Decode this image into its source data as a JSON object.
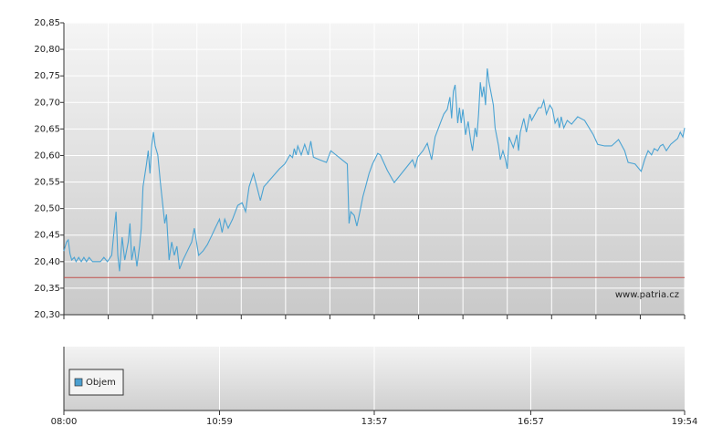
{
  "chart_data": [
    {
      "type": "line",
      "color": "#4aa3d3",
      "xlim": [
        480,
        1194
      ],
      "xticks": [
        480,
        531,
        582,
        633,
        684,
        735,
        786,
        837,
        888,
        939,
        990,
        1041,
        1092,
        1143,
        1194
      ],
      "ylim": [
        20.3,
        20.85
      ],
      "yticks": [
        {
          "value": 20.3,
          "label": "20,30"
        },
        {
          "value": 20.35,
          "label": "20,35"
        },
        {
          "value": 20.4,
          "label": "20,40"
        },
        {
          "value": 20.45,
          "label": "20,45"
        },
        {
          "value": 20.5,
          "label": "20,50"
        },
        {
          "value": 20.55,
          "label": "20,55"
        },
        {
          "value": 20.6,
          "label": "20,60"
        },
        {
          "value": 20.65,
          "label": "20,65"
        },
        {
          "value": 20.7,
          "label": "20,70"
        },
        {
          "value": 20.75,
          "label": "20,75"
        },
        {
          "value": 20.8,
          "label": "20,80"
        },
        {
          "value": 20.85,
          "label": "20,85"
        }
      ],
      "grid": true,
      "reference_line": {
        "value": 20.37,
        "color": "#c0504d"
      },
      "annotation": "www.patria.cz",
      "x": [
        480,
        483,
        485,
        487,
        489,
        492,
        494,
        497,
        500,
        503,
        506,
        509,
        513,
        516,
        522,
        526,
        530,
        535,
        538,
        540,
        542,
        544,
        547,
        550,
        554,
        556,
        558,
        561,
        564,
        567,
        569,
        571,
        575,
        577,
        579,
        581,
        583,
        585,
        588,
        591,
        596,
        598,
        601,
        604,
        607,
        610,
        613,
        617,
        622,
        627,
        630,
        635,
        640,
        645,
        650,
        654,
        659,
        662,
        665,
        669,
        674,
        680,
        685,
        689,
        693,
        698,
        702,
        706,
        710,
        728,
        734,
        740,
        743,
        745,
        747,
        749,
        753,
        757,
        761,
        764,
        767,
        774,
        782,
        787,
        806,
        808,
        810,
        814,
        817,
        821,
        824,
        827,
        831,
        835,
        841,
        844,
        852,
        860,
        881,
        884,
        887,
        893,
        898,
        903,
        907,
        913,
        917,
        921,
        924,
        926,
        928,
        930,
        933,
        935,
        937,
        939,
        942,
        945,
        948,
        950,
        953,
        955,
        957,
        959,
        961,
        963,
        965,
        967,
        969,
        971,
        974,
        976,
        980,
        982,
        985,
        988,
        990,
        992,
        997,
        1001,
        1003,
        1005,
        1009,
        1012,
        1016,
        1018,
        1022,
        1026,
        1029,
        1032,
        1035,
        1039,
        1042,
        1045,
        1048,
        1050,
        1052,
        1055,
        1059,
        1064,
        1071,
        1079,
        1089,
        1094,
        1102,
        1110,
        1118,
        1125,
        1129,
        1137,
        1144,
        1148,
        1152,
        1156,
        1159,
        1163,
        1166,
        1169,
        1173,
        1178,
        1186,
        1189,
        1192,
        1194
      ],
      "values": [
        20.42,
        20.437,
        20.441,
        20.415,
        20.403,
        20.408,
        20.4,
        20.408,
        20.4,
        20.408,
        20.4,
        20.408,
        20.4,
        20.4,
        20.4,
        20.408,
        20.4,
        20.412,
        20.463,
        20.494,
        20.412,
        20.382,
        20.446,
        20.403,
        20.437,
        20.472,
        20.403,
        20.429,
        20.391,
        20.429,
        20.463,
        20.541,
        20.584,
        20.609,
        20.566,
        20.618,
        20.644,
        20.618,
        20.601,
        20.549,
        20.472,
        20.489,
        20.403,
        20.437,
        20.412,
        20.429,
        20.386,
        20.403,
        20.42,
        20.437,
        20.463,
        20.412,
        20.42,
        20.432,
        20.449,
        20.463,
        20.48,
        20.455,
        20.48,
        20.463,
        20.48,
        20.506,
        20.511,
        20.494,
        20.541,
        20.566,
        20.541,
        20.515,
        20.541,
        20.575,
        20.584,
        20.601,
        20.596,
        20.613,
        20.601,
        20.618,
        20.601,
        20.621,
        20.601,
        20.627,
        20.597,
        20.592,
        20.587,
        20.609,
        20.584,
        20.472,
        20.494,
        20.487,
        20.467,
        20.498,
        20.523,
        20.541,
        20.566,
        20.584,
        20.604,
        20.601,
        20.572,
        20.549,
        20.592,
        20.578,
        20.597,
        20.609,
        20.623,
        20.592,
        20.635,
        20.661,
        20.678,
        20.687,
        20.71,
        20.67,
        20.721,
        20.733,
        20.661,
        20.69,
        20.661,
        20.687,
        20.639,
        20.664,
        20.627,
        20.609,
        20.652,
        20.635,
        20.678,
        20.738,
        20.71,
        20.73,
        20.695,
        20.764,
        20.738,
        20.721,
        20.695,
        20.652,
        20.618,
        20.592,
        20.609,
        20.592,
        20.575,
        20.635,
        20.615,
        20.639,
        20.609,
        20.644,
        20.67,
        20.644,
        20.678,
        20.666,
        20.678,
        20.69,
        20.69,
        20.704,
        20.678,
        20.695,
        20.687,
        20.661,
        20.67,
        20.652,
        20.673,
        20.652,
        20.666,
        20.659,
        20.673,
        20.666,
        20.639,
        20.621,
        20.618,
        20.618,
        20.63,
        20.609,
        20.587,
        20.584,
        20.57,
        20.592,
        20.609,
        20.601,
        20.613,
        20.609,
        20.618,
        20.621,
        20.609,
        20.621,
        20.632,
        20.644,
        20.635,
        20.652
      ]
    },
    {
      "type": "bar",
      "xlim": [
        480,
        1194
      ],
      "xticks": [
        {
          "value": 480,
          "label": "08:00"
        },
        {
          "value": 659,
          "label": "10:59"
        },
        {
          "value": 837,
          "label": "13:57"
        },
        {
          "value": 1017,
          "label": "16:57"
        },
        {
          "value": 1194,
          "label": "19:54"
        }
      ],
      "grid": true,
      "series": [
        {
          "name": "Objem",
          "color": "#4a9fd0"
        }
      ]
    }
  ]
}
